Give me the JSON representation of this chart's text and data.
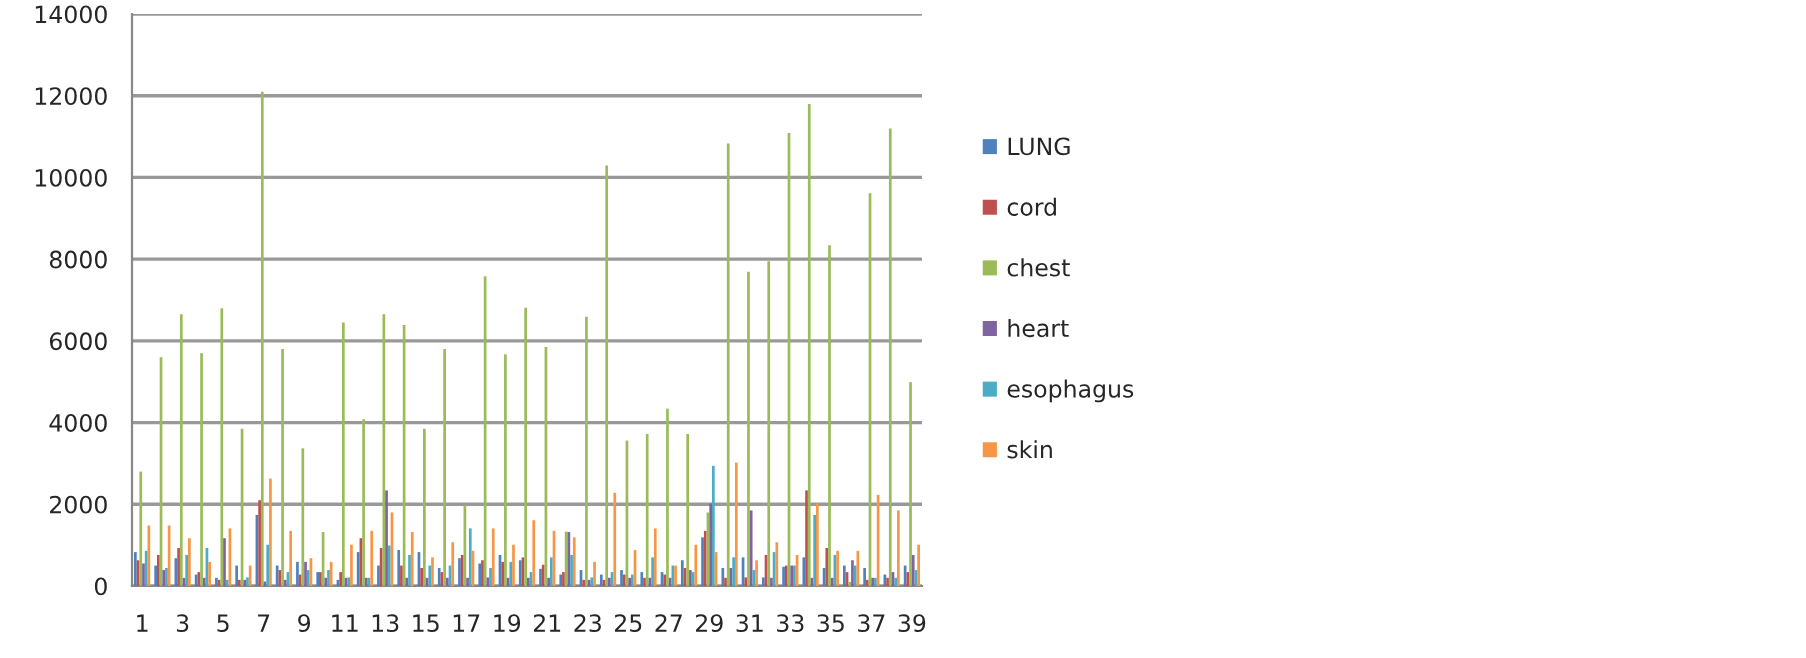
{
  "chart_data": {
    "type": "bar",
    "categories": [
      "1",
      null,
      "3",
      null,
      "5",
      null,
      "7",
      null,
      "9",
      null,
      "11",
      null,
      "13",
      null,
      "15",
      null,
      "17",
      null,
      "19",
      null,
      "21",
      null,
      "23",
      null,
      "25",
      null,
      "27",
      null,
      "29",
      null,
      "31",
      null,
      "33",
      null,
      "35",
      null,
      "37",
      null,
      "39"
    ],
    "series": [
      {
        "name": "LUNG",
        "color": "#4f81bd",
        "values": [
          830,
          500,
          680,
          280,
          200,
          500,
          1740,
          500,
          590,
          340,
          150,
          830,
          500,
          880,
          830,
          440,
          680,
          550,
          760,
          630,
          420,
          280,
          390,
          280,
          390,
          340,
          340,
          630,
          1190,
          440,
          700,
          210,
          470,
          700,
          440,
          500,
          440,
          280,
          500
        ]
      },
      {
        "name": "cord",
        "color": "#c0504d",
        "values": [
          630,
          760,
          930,
          340,
          150,
          150,
          2100,
          390,
          280,
          340,
          340,
          1170,
          930,
          500,
          440,
          340,
          760,
          630,
          590,
          700,
          520,
          340,
          150,
          150,
          280,
          200,
          280,
          440,
          1350,
          200,
          210,
          760,
          500,
          2340,
          930,
          340,
          150,
          200,
          340
        ]
      },
      {
        "name": "chest",
        "color": "#9bbb59",
        "values": [
          2800,
          5600,
          6650,
          5700,
          6800,
          3850,
          12100,
          5800,
          3370,
          1320,
          6450,
          4080,
          6650,
          6390,
          3850,
          5800,
          1980,
          7580,
          5670,
          6810,
          5850,
          1330,
          6590,
          10290,
          3560,
          3720,
          4340,
          3720,
          1800,
          10830,
          7690,
          7950,
          11090,
          11800,
          8340,
          100,
          9610,
          11200,
          4990
        ]
      },
      {
        "name": "heart",
        "color": "#8064a2",
        "values": [
          550,
          390,
          200,
          200,
          1170,
          150,
          110,
          150,
          590,
          200,
          200,
          200,
          2340,
          200,
          200,
          200,
          200,
          210,
          200,
          200,
          200,
          1320,
          150,
          200,
          200,
          200,
          200,
          390,
          2020,
          440,
          1850,
          200,
          500,
          200,
          200,
          630,
          200,
          340,
          760
        ]
      },
      {
        "name": "esophagus",
        "color": "#4bacc6",
        "values": [
          860,
          440,
          760,
          930,
          150,
          210,
          1010,
          340,
          390,
          390,
          210,
          200,
          990,
          760,
          500,
          500,
          1410,
          440,
          590,
          340,
          700,
          760,
          210,
          340,
          280,
          700,
          500,
          340,
          2940,
          700,
          390,
          830,
          500,
          1740,
          760,
          500,
          200,
          200,
          390
        ]
      },
      {
        "name": "skin",
        "color": "#f79646",
        "values": [
          1480,
          1480,
          1170,
          590,
          1410,
          500,
          2630,
          1350,
          680,
          590,
          1010,
          1350,
          1800,
          1320,
          700,
          1070,
          860,
          1410,
          1010,
          1610,
          1350,
          1190,
          590,
          2280,
          880,
          1410,
          500,
          1010,
          830,
          3020,
          630,
          1070,
          760,
          2020,
          860,
          860,
          2230,
          1850,
          1010
        ]
      }
    ],
    "ylim": [
      0,
      14000
    ],
    "yticks": [
      0,
      2000,
      4000,
      6000,
      8000,
      10000,
      12000,
      14000
    ],
    "grid": "y",
    "legend": "right"
  }
}
